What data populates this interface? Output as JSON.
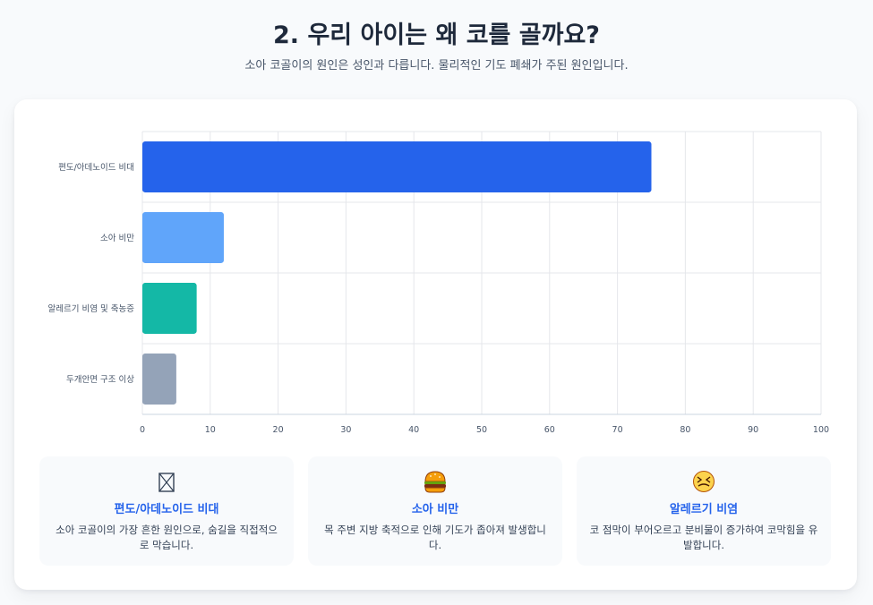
{
  "header": {
    "title": "2. 우리 아이는 왜 코를 골까요?",
    "subtitle": "소아 코골이의 원인은 성인과 다릅니다. 물리적인 기도 폐쇄가 주된 원인입니다."
  },
  "chart_data": {
    "type": "bar",
    "orientation": "horizontal",
    "categories": [
      "편도/아데노이드 비대",
      "소아 비만",
      "알레르기 비염 및 축농증",
      "두개안면 구조 이상"
    ],
    "values": [
      75,
      12,
      8,
      5
    ],
    "colors": [
      "#2563eb",
      "#60a5fa",
      "#14b8a6",
      "#94a3b8"
    ],
    "xlim": [
      0,
      100
    ],
    "xticks": [
      0,
      10,
      20,
      30,
      40,
      50,
      60,
      70,
      80,
      90,
      100
    ],
    "grid": true,
    "xlabel": "",
    "ylabel": ""
  },
  "features": [
    {
      "icon": "tonsil-box-icon",
      "title": "편도/아데노이드 비대",
      "description": "소아 코골이의 가장 흔한 원인으로, 숨길을 직접적으로 막습니다."
    },
    {
      "icon": "burger-icon",
      "title": "소아 비만",
      "description": "목 주변 지방 축적으로 인해 기도가 좁아져 발생합니다."
    },
    {
      "icon": "sneezing-face-icon",
      "title": "알레르기 비염",
      "description": "코 점막이 부어오르고 분비물이 증가하여 코막힘을 유발합니다."
    }
  ]
}
